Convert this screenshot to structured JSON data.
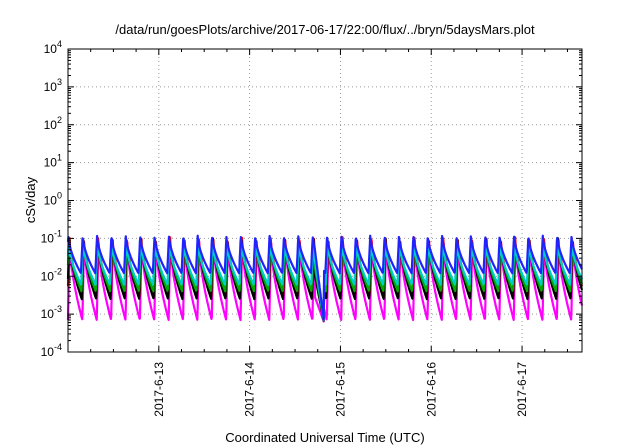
{
  "chart_data": {
    "type": "line",
    "title": "/data/run/goesPlots/archive/2017-06-17/22:00/flux/../bryn/5daysMars.plot",
    "xlabel": "Coordinated Universal Time (UTC)",
    "ylabel": "cSv/day",
    "y_scale": "log",
    "ylim": [
      0.0001,
      10000
    ],
    "y_ticks": [
      {
        "value": 0.0001,
        "base": "10",
        "exp": "-4"
      },
      {
        "value": 0.001,
        "base": "10",
        "exp": "-3"
      },
      {
        "value": 0.01,
        "base": "10",
        "exp": "-2"
      },
      {
        "value": 0.1,
        "base": "10",
        "exp": "-1"
      },
      {
        "value": 1,
        "base": "10",
        "exp": "0"
      },
      {
        "value": 10,
        "base": "10",
        "exp": "1"
      },
      {
        "value": 100,
        "base": "10",
        "exp": "2"
      },
      {
        "value": 1000,
        "base": "10",
        "exp": "3"
      },
      {
        "value": 10000,
        "base": "10",
        "exp": "4"
      }
    ],
    "xlim_days": [
      0,
      5.66
    ],
    "x_ticks": [
      {
        "day": 1,
        "label": "2017-6-13"
      },
      {
        "day": 2,
        "label": "2017-6-14"
      },
      {
        "day": 3,
        "label": "2017-6-15"
      },
      {
        "day": 4,
        "label": "2017-6-16"
      },
      {
        "day": 5,
        "label": "2017-6-17"
      }
    ],
    "grid": true,
    "orbit_period_hours": 3.8,
    "series": [
      {
        "color": "#ff00ff",
        "peak": 0.085,
        "trough": 0.0007
      },
      {
        "color": "#ff0000",
        "peak": 0.11,
        "trough": 0.003
      },
      {
        "color": "#000000",
        "peak": 0.1,
        "trough": 0.0025
      },
      {
        "color": "#00aa00",
        "peak": 0.095,
        "trough": 0.004
      },
      {
        "color": "#00cccc",
        "peak": 0.08,
        "trough": 0.006
      },
      {
        "color": "#2222ff",
        "peak": 0.12,
        "trough": 0.012
      }
    ],
    "dropout": {
      "start_day": 2.72,
      "end_day": 2.82,
      "value": 0.0006
    }
  }
}
